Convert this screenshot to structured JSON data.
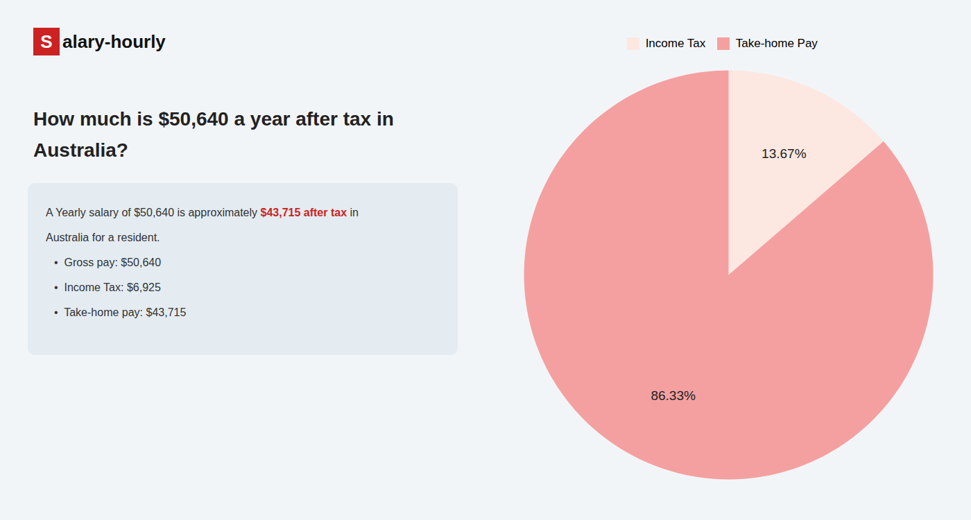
{
  "chart_data": {
    "type": "pie",
    "title": "How much is $50,640 a year after tax in\nAustralia?",
    "annotations": [
      [
        {
          "text": "S",
          "color": "#cc2222"
        },
        {
          "text": "alary-hourly"
        }
      ],
      [
        {
          "text": "A Yearly salary of $50,640 is approximately "
        },
        {
          "text": "$43,715 after tax",
          "color": "#cc2222"
        },
        {
          "text": " in"
        }
      ],
      [
        {
          "text": "Australia for a resident."
        }
      ],
      [
        {
          "text": "•  Gross pay: $50,640"
        }
      ],
      [
        {
          "text": "•  Income Tax: $6,925"
        }
      ],
      [
        {
          "text": "•  Take-home pay: $43,715"
        }
      ]
    ],
    "categories": [
      "Income Tax",
      "Take-home Pay"
    ],
    "values": [
      13.67,
      86.33
    ],
    "value_labels": [
      "13.67%",
      "86.33%"
    ],
    "colors": [
      "#fce8e0",
      "#f5a0a0"
    ],
    "data_labels": true,
    "legend": "top"
  }
}
